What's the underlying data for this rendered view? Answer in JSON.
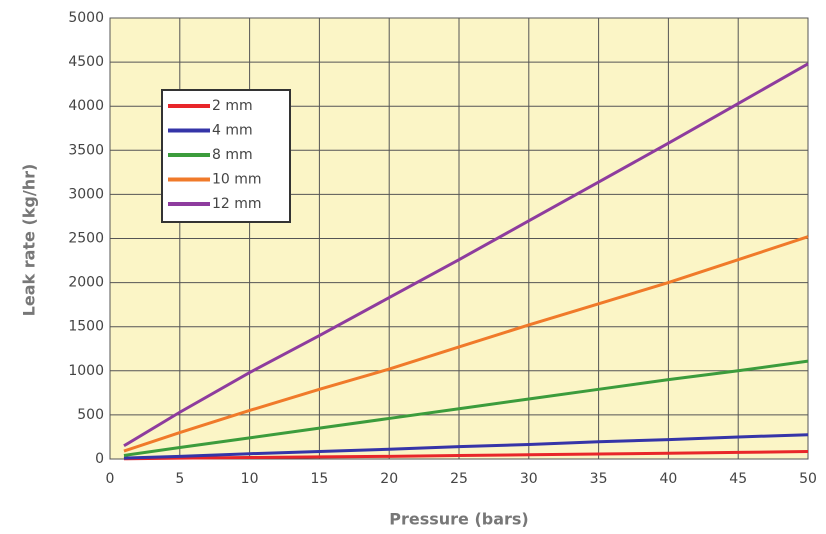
{
  "chart_data": {
    "type": "line",
    "x_label": "Pressure (bars)",
    "y_label": "Leak rate (kg/hr)",
    "x": [
      1,
      5,
      10,
      15,
      20,
      25,
      30,
      35,
      40,
      45,
      50
    ],
    "series": [
      {
        "name": "2 mm",
        "color": "#e8262a",
        "values": [
          3,
          10,
          17,
          24,
          30,
          40,
          48,
          57,
          65,
          75,
          85
        ]
      },
      {
        "name": "4 mm",
        "color": "#3535a8",
        "values": [
          10,
          30,
          60,
          85,
          110,
          140,
          165,
          195,
          220,
          250,
          275
        ]
      },
      {
        "name": "8 mm",
        "color": "#3c9c3c",
        "values": [
          40,
          130,
          240,
          350,
          460,
          570,
          680,
          790,
          900,
          1000,
          1110
        ]
      },
      {
        "name": "10 mm",
        "color": "#f07a2a",
        "values": [
          90,
          300,
          550,
          790,
          1020,
          1270,
          1520,
          1760,
          2000,
          2260,
          2520
        ]
      },
      {
        "name": "12 mm",
        "color": "#8e3c9e",
        "values": [
          150,
          530,
          980,
          1400,
          1830,
          2260,
          2700,
          3140,
          3580,
          4030,
          4480
        ]
      }
    ],
    "xlim": [
      0,
      50
    ],
    "xticks": [
      0,
      5,
      10,
      15,
      20,
      25,
      30,
      35,
      40,
      45,
      50
    ],
    "ylim": [
      0,
      5000
    ],
    "yticks": [
      0,
      500,
      1000,
      1500,
      2000,
      2500,
      3000,
      3500,
      4000,
      4500,
      5000
    ],
    "grid": true,
    "legend": "upper left"
  }
}
